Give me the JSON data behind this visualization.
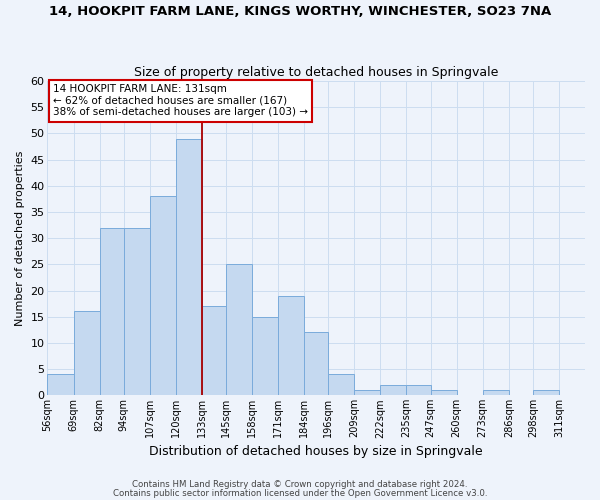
{
  "title": "14, HOOKPIT FARM LANE, KINGS WORTHY, WINCHESTER, SO23 7NA",
  "subtitle": "Size of property relative to detached houses in Springvale",
  "xlabel": "Distribution of detached houses by size in Springvale",
  "ylabel": "Number of detached properties",
  "bin_labels": [
    "56sqm",
    "69sqm",
    "82sqm",
    "94sqm",
    "107sqm",
    "120sqm",
    "133sqm",
    "145sqm",
    "158sqm",
    "171sqm",
    "184sqm",
    "196sqm",
    "209sqm",
    "222sqm",
    "235sqm",
    "247sqm",
    "260sqm",
    "273sqm",
    "286sqm",
    "298sqm",
    "311sqm"
  ],
  "bins_left": [
    56,
    69,
    82,
    94,
    107,
    120,
    133,
    145,
    158,
    171,
    184,
    196,
    209,
    222,
    235,
    247,
    260,
    273,
    286,
    298,
    311
  ],
  "bin_counts": [
    4,
    16,
    32,
    32,
    38,
    49,
    17,
    25,
    15,
    19,
    12,
    4,
    1,
    2,
    2,
    1,
    0,
    1,
    0,
    1
  ],
  "red_line_x": 133,
  "bar_color": "#c5d9f0",
  "bar_edge_color": "#7aabdb",
  "red_line_color": "#aa0000",
  "grid_color": "#ccddf0",
  "annotation_text": "14 HOOKPIT FARM LANE: 131sqm\n← 62% of detached houses are smaller (167)\n38% of semi-detached houses are larger (103) →",
  "annotation_box_color": "#ffffff",
  "annotation_box_edge": "#cc0000",
  "ylim": [
    0,
    60
  ],
  "yticks": [
    0,
    5,
    10,
    15,
    20,
    25,
    30,
    35,
    40,
    45,
    50,
    55,
    60
  ],
  "footer1": "Contains HM Land Registry data © Crown copyright and database right 2024.",
  "footer2": "Contains public sector information licensed under the Open Government Licence v3.0.",
  "background_color": "#eef3fb",
  "title_fontsize": 9.5,
  "subtitle_fontsize": 9,
  "ylabel_fontsize": 8,
  "xlabel_fontsize": 9,
  "ytick_fontsize": 8,
  "xtick_fontsize": 7
}
